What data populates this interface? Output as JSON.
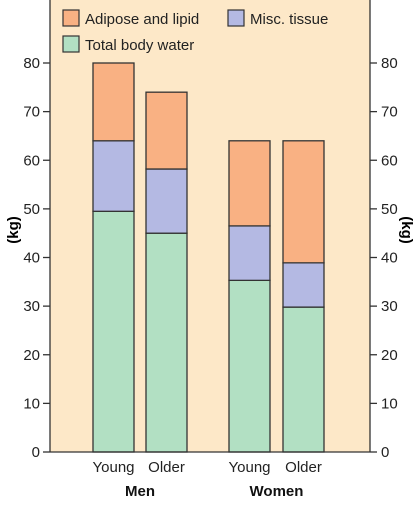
{
  "chart_data": {
    "type": "bar",
    "stacked": true,
    "title": "",
    "xlabel": "",
    "ylabel": "(kg)",
    "ylabel_right": "(kg)",
    "ylim": [
      0,
      80
    ],
    "yticks": [
      0,
      10,
      20,
      30,
      40,
      50,
      60,
      70,
      80
    ],
    "ytick_labels": [
      "0",
      "10",
      "20",
      "30",
      "40",
      "50",
      "60",
      "70",
      "80"
    ],
    "grid": false,
    "legend_position": "top-left",
    "background_color": "#fde8c8",
    "groups": [
      {
        "label": "Men",
        "categories": [
          "Young",
          "Older"
        ]
      },
      {
        "label": "Women",
        "categories": [
          "Young",
          "Older"
        ]
      }
    ],
    "categories": [
      "Young",
      "Older",
      "Young",
      "Older"
    ],
    "series": [
      {
        "name": "Total body water",
        "color": "#b2e0c3",
        "values": [
          49.5,
          45,
          35.3,
          29.8
        ]
      },
      {
        "name": "Misc. tissue",
        "color": "#b4b9e3",
        "values": [
          14.5,
          13.2,
          11.2,
          9.1
        ]
      },
      {
        "name": "Adipose and lipid",
        "color": "#f9b183",
        "values": [
          16,
          15.8,
          17.5,
          25.1
        ]
      }
    ],
    "legend": [
      {
        "name": "Adipose and lipid",
        "color": "#f9b183"
      },
      {
        "name": "Misc. tissue",
        "color": "#b4b9e3"
      },
      {
        "name": "Total body water",
        "color": "#b2e0c3"
      }
    ]
  }
}
